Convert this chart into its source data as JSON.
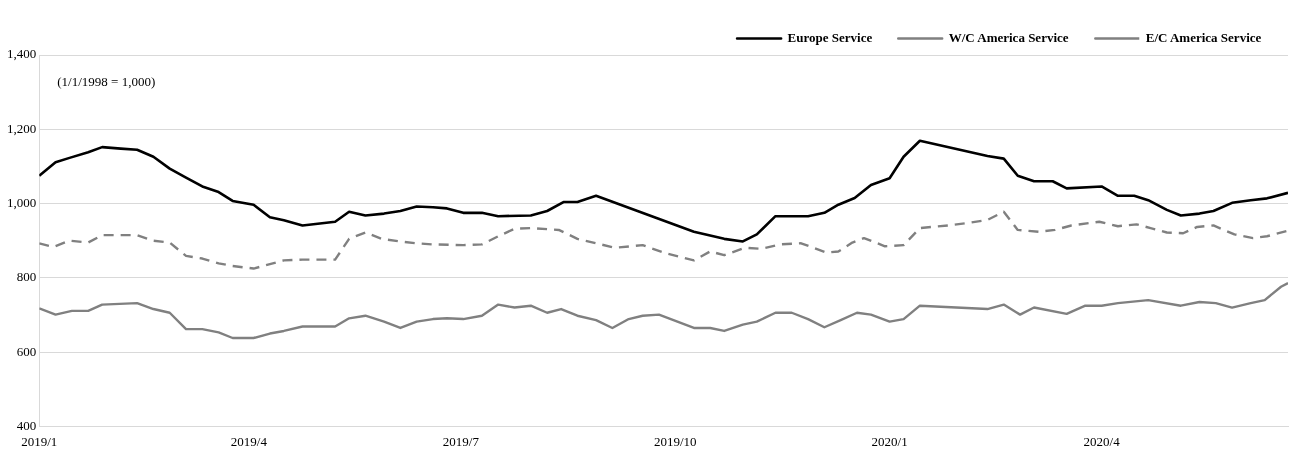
{
  "chart_data": {
    "type": "line",
    "annotations": [
      "(1/1/1998 = 1,000)"
    ],
    "xlim": [
      "2019-01-01",
      "2020-06-20"
    ],
    "xticks": [
      {
        "value": "2019-01-01",
        "label": "2019/1"
      },
      {
        "value": "2019-04-01",
        "label": "2019/4"
      },
      {
        "value": "2019-07-01",
        "label": "2019/7"
      },
      {
        "value": "2019-10-01",
        "label": "2019/10"
      },
      {
        "value": "2020-01-01",
        "label": "2020/1"
      },
      {
        "value": "2020-04-01",
        "label": "2020/4"
      }
    ],
    "ylim": [
      400,
      1400
    ],
    "yticks": [
      {
        "value": 400,
        "label": "400"
      },
      {
        "value": 600,
        "label": "600"
      },
      {
        "value": 800,
        "label": "800"
      },
      {
        "value": 1000,
        "label": "1,000"
      },
      {
        "value": 1200,
        "label": "1,200"
      },
      {
        "value": 1400,
        "label": "1,400"
      }
    ],
    "grid": "y",
    "legend": "top right",
    "marker": "none",
    "series": [
      {
        "name": "Europe Service",
        "color": "#000000",
        "line_style": "solid",
        "x": [
          "2019-01-01",
          "2019-01-08",
          "2019-01-14",
          "2019-01-22",
          "2019-01-28",
          "2019-02-05",
          "2019-02-12",
          "2019-02-19",
          "2019-02-26",
          "2019-03-05",
          "2019-03-12",
          "2019-03-19",
          "2019-03-25",
          "2019-04-03",
          "2019-04-10",
          "2019-04-16",
          "2019-04-24",
          "2019-05-08",
          "2019-05-14",
          "2019-05-21",
          "2019-05-29",
          "2019-06-05",
          "2019-06-12",
          "2019-06-19",
          "2019-06-25",
          "2019-07-02",
          "2019-07-10",
          "2019-07-17",
          "2019-07-31",
          "2019-08-07",
          "2019-08-14",
          "2019-08-20",
          "2019-08-28",
          "2019-10-09",
          "2019-10-22",
          "2019-10-30",
          "2019-11-05",
          "2019-11-13",
          "2019-11-27",
          "2019-12-04",
          "2019-12-10",
          "2019-12-17",
          "2019-12-24",
          "2020-01-01",
          "2020-01-07",
          "2020-01-14",
          "2020-02-12",
          "2020-02-19",
          "2020-02-25",
          "2020-03-03",
          "2020-03-11",
          "2020-03-17",
          "2020-04-01",
          "2020-04-08",
          "2020-04-15",
          "2020-04-21",
          "2020-04-29",
          "2020-05-05",
          "2020-05-13",
          "2020-05-19",
          "2020-05-27",
          "2020-06-04",
          "2020-06-11",
          "2020-06-20"
        ],
        "values": [
          1075,
          1111,
          1123,
          1138,
          1152,
          1148,
          1145,
          1126,
          1094,
          1070,
          1046,
          1031,
          1007,
          997,
          963,
          955,
          941,
          951,
          978,
          968,
          973,
          980,
          992,
          990,
          987,
          975,
          975,
          966,
          968,
          980,
          1004,
          1004,
          1021,
          924,
          905,
          898,
          917,
          966,
          966,
          975,
          997,
          1015,
          1050,
          1068,
          1126,
          1169,
          1128,
          1121,
          1075,
          1060,
          1060,
          1041,
          1046,
          1021,
          1021,
          1009,
          983,
          968,
          973,
          980,
          1002,
          1009,
          1014,
          1029
        ]
      },
      {
        "name": "W/C America Service",
        "color": "#808080",
        "line_style": "solid",
        "x": [
          "2019-01-01",
          "2019-01-08",
          "2019-01-15",
          "2019-01-22",
          "2019-01-28",
          "2019-02-12",
          "2019-02-19",
          "2019-02-26",
          "2019-03-05",
          "2019-03-12",
          "2019-03-19",
          "2019-03-25",
          "2019-04-03",
          "2019-04-10",
          "2019-04-16",
          "2019-04-24",
          "2019-05-08",
          "2019-05-14",
          "2019-05-21",
          "2019-05-29",
          "2019-06-05",
          "2019-06-12",
          "2019-06-19",
          "2019-06-25",
          "2019-07-02",
          "2019-07-10",
          "2019-07-17",
          "2019-07-24",
          "2019-07-31",
          "2019-08-07",
          "2019-08-13",
          "2019-08-20",
          "2019-08-28",
          "2019-09-04",
          "2019-09-11",
          "2019-09-17",
          "2019-09-24",
          "2019-10-09",
          "2019-10-16",
          "2019-10-22",
          "2019-10-30",
          "2019-11-05",
          "2019-11-13",
          "2019-11-20",
          "2019-11-27",
          "2019-12-04",
          "2019-12-11",
          "2019-12-18",
          "2019-12-24",
          "2020-01-01",
          "2020-01-07",
          "2020-01-14",
          "2020-02-12",
          "2020-02-19",
          "2020-02-26",
          "2020-03-03",
          "2020-03-17",
          "2020-03-25",
          "2020-04-01",
          "2020-04-08",
          "2020-04-21",
          "2020-05-05",
          "2020-05-13",
          "2020-05-20",
          "2020-05-27",
          "2020-06-04",
          "2020-06-10",
          "2020-06-17",
          "2020-06-20"
        ],
        "values": [
          718,
          701,
          711,
          711,
          728,
          732,
          716,
          706,
          662,
          662,
          653,
          638,
          638,
          650,
          657,
          669,
          669,
          691,
          698,
          682,
          665,
          682,
          689,
          691,
          689,
          698,
          728,
          720,
          725,
          706,
          716,
          698,
          686,
          665,
          689,
          698,
          701,
          665,
          665,
          657,
          674,
          682,
          706,
          706,
          689,
          667,
          686,
          706,
          701,
          682,
          689,
          725,
          716,
          728,
          701,
          720,
          703,
          725,
          725,
          732,
          740,
          725,
          735,
          732,
          720,
          732,
          740,
          776,
          786
        ]
      },
      {
        "name": "E/C America Service",
        "color": "#808080",
        "line_style": "dashed",
        "x": [
          "2019-01-01",
          "2019-01-07",
          "2019-01-14",
          "2019-01-22",
          "2019-01-28",
          "2019-02-12",
          "2019-02-19",
          "2019-02-26",
          "2019-03-05",
          "2019-03-12",
          "2019-03-19",
          "2019-03-25",
          "2019-04-03",
          "2019-04-10",
          "2019-04-16",
          "2019-04-24",
          "2019-05-08",
          "2019-05-14",
          "2019-05-21",
          "2019-05-28",
          "2019-06-05",
          "2019-06-12",
          "2019-06-19",
          "2019-07-02",
          "2019-07-10",
          "2019-07-17",
          "2019-07-24",
          "2019-07-31",
          "2019-08-12",
          "2019-08-20",
          "2019-08-28",
          "2019-09-05",
          "2019-09-17",
          "2019-09-27",
          "2019-10-09",
          "2019-10-16",
          "2019-10-22",
          "2019-10-31",
          "2019-11-07",
          "2019-11-15",
          "2019-11-24",
          "2019-12-05",
          "2019-12-10",
          "2019-12-16",
          "2019-12-21",
          "2019-12-30",
          "2020-01-07",
          "2020-01-14",
          "2020-01-26",
          "2020-02-05",
          "2020-02-12",
          "2020-02-19",
          "2020-02-25",
          "2020-03-05",
          "2020-03-12",
          "2020-03-19",
          "2020-03-31",
          "2020-04-08",
          "2020-04-16",
          "2020-04-22",
          "2020-04-29",
          "2020-05-06",
          "2020-05-12",
          "2020-05-19",
          "2020-05-28",
          "2020-06-05",
          "2020-06-11",
          "2020-06-20"
        ],
        "values": [
          893,
          883,
          900,
          895,
          915,
          915,
          900,
          895,
          859,
          852,
          839,
          832,
          825,
          837,
          847,
          849,
          849,
          905,
          922,
          905,
          898,
          893,
          890,
          888,
          890,
          912,
          932,
          934,
          929,
          905,
          893,
          881,
          888,
          866,
          847,
          871,
          861,
          881,
          878,
          890,
          893,
          868,
          871,
          895,
          907,
          885,
          888,
          934,
          941,
          949,
          956,
          978,
          929,
          924,
          929,
          941,
          951,
          939,
          944,
          934,
          922,
          920,
          937,
          941,
          917,
          907,
          912,
          927
        ]
      }
    ]
  }
}
